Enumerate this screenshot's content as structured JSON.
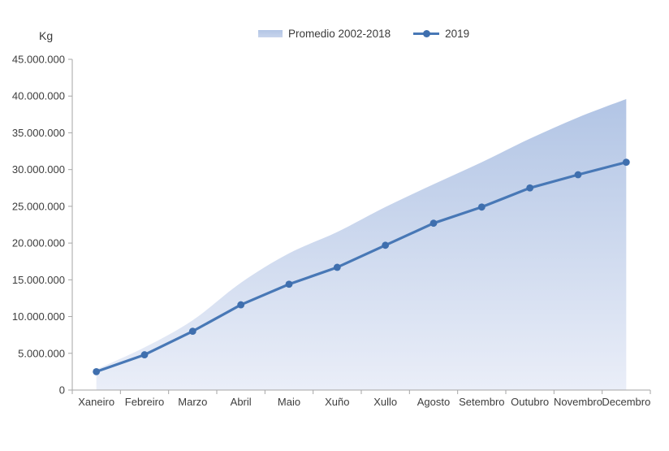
{
  "y_axis_title": "Kg",
  "chart_data": {
    "type": "area+line combo (cumulative monthly)",
    "title": "",
    "ylabel": "Kg",
    "xlabel": "",
    "grid": false,
    "legend_position": "top-center",
    "categories": [
      "Xaneiro",
      "Febreiro",
      "Marzo",
      "Abril",
      "Maio",
      "Xuño",
      "Xullo",
      "Agosto",
      "Setembro",
      "Outubro",
      "Novembro",
      "Decembro"
    ],
    "series": [
      {
        "name": "Promedio 2002-2018",
        "type": "area",
        "color_top": "#aabfe2",
        "color_bottom": "#eaeef8",
        "values": [
          2800000,
          5800000,
          9500000,
          14600000,
          18600000,
          21500000,
          24900000,
          28000000,
          31000000,
          34200000,
          37100000,
          39600000
        ]
      },
      {
        "name": "2019",
        "type": "line",
        "color": "#4878b6",
        "marker_color": "#3f6fae",
        "values": [
          2500000,
          4800000,
          8000000,
          11600000,
          14400000,
          16700000,
          19700000,
          22700000,
          24900000,
          27500000,
          29300000,
          31000000
        ]
      }
    ],
    "y_axis": {
      "min": 0,
      "max": 45000000,
      "step": 5000000,
      "tick_labels": [
        "0",
        "5.000.000",
        "10.000.000",
        "15.000.000",
        "20.000.000",
        "25.000.000",
        "30.000.000",
        "35.000.000",
        "40.000.000",
        "45.000.000"
      ]
    },
    "axis_color": "#a6a6a6",
    "text_color": "#3d3d3d"
  }
}
